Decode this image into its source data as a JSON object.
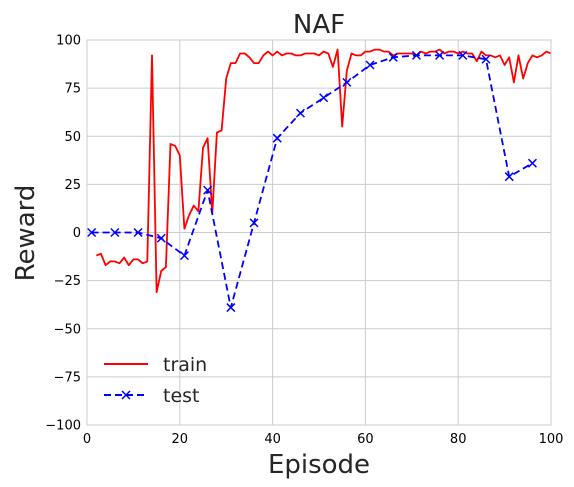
{
  "chart_data": {
    "type": "line",
    "title": "NAF",
    "xlabel": "Episode",
    "ylabel": "Reward",
    "xlim": [
      0,
      100
    ],
    "ylim": [
      -100,
      100
    ],
    "xticks": [
      0,
      20,
      40,
      60,
      80,
      100
    ],
    "yticks": [
      -100,
      -75,
      -50,
      -25,
      0,
      25,
      50,
      75,
      100
    ],
    "grid": true,
    "legend_position": "lower-left",
    "series": [
      {
        "name": "train",
        "color": "#ff0000",
        "line_style": "solid",
        "marker": "none",
        "x": [
          2,
          3,
          4,
          5,
          6,
          7,
          8,
          9,
          10,
          11,
          12,
          13,
          14,
          15,
          16,
          17,
          18,
          19,
          20,
          21,
          22,
          23,
          24,
          25,
          26,
          27,
          28,
          29,
          30,
          31,
          32,
          33,
          34,
          35,
          36,
          37,
          38,
          39,
          40,
          41,
          42,
          43,
          44,
          45,
          46,
          47,
          48,
          49,
          50,
          51,
          52,
          53,
          54,
          55,
          56,
          57,
          58,
          59,
          60,
          61,
          62,
          63,
          64,
          65,
          66,
          67,
          68,
          69,
          70,
          71,
          72,
          73,
          74,
          75,
          76,
          77,
          78,
          79,
          80,
          81,
          82,
          83,
          84,
          85,
          86,
          87,
          88,
          89,
          90,
          91,
          92,
          93,
          94,
          95,
          96,
          97,
          98,
          99,
          100
        ],
        "values": [
          -12,
          -11,
          -17,
          -15,
          -15,
          -16,
          -13,
          -17,
          -14,
          -14,
          -16,
          -15,
          92,
          -31,
          -20,
          -18,
          46,
          45,
          40,
          2,
          9,
          14,
          11,
          44,
          49,
          10,
          52,
          53,
          80,
          88,
          88,
          93,
          93,
          91,
          88,
          88,
          92,
          94,
          92,
          94,
          92,
          93,
          93,
          92,
          92,
          93,
          93,
          93,
          92,
          94,
          93,
          86,
          95,
          55,
          84,
          93,
          92,
          92,
          94,
          94,
          95,
          95,
          94,
          94,
          92,
          93,
          93,
          93,
          93,
          92,
          94,
          93,
          94,
          94,
          95,
          93,
          94,
          94,
          93,
          94,
          93,
          93,
          89,
          94,
          92,
          92,
          91,
          92,
          87,
          91,
          78,
          92,
          80,
          88,
          92,
          91,
          92,
          94,
          93
        ]
      },
      {
        "name": "test",
        "color": "#0000ff",
        "line_style": "dashed",
        "marker": "x",
        "x": [
          1,
          6,
          11,
          16,
          21,
          26,
          31,
          36,
          41,
          46,
          51,
          56,
          61,
          66,
          71,
          76,
          81,
          86,
          91,
          96
        ],
        "values": [
          0,
          0,
          0,
          -3,
          -12,
          22,
          -39,
          5,
          49,
          62,
          70,
          78,
          87,
          91,
          92,
          92,
          92,
          90,
          29,
          36
        ]
      }
    ]
  }
}
